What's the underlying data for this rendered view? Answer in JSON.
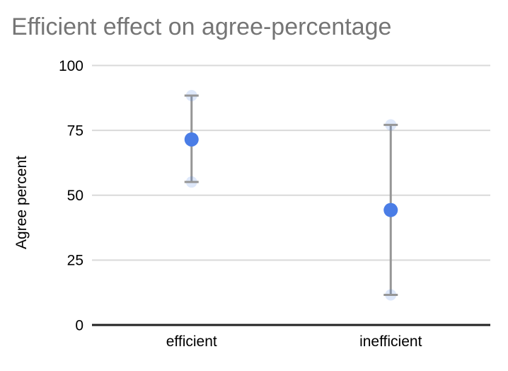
{
  "chart_data": {
    "type": "scatter",
    "title": "Efficient effect on agree-percentage",
    "xlabel": "",
    "ylabel": "Agree percent",
    "categories": [
      "efficient",
      "inefficient"
    ],
    "series": [
      {
        "values": [
          71.5,
          44.3
        ],
        "error_low": [
          55.1,
          11.6
        ],
        "error_high": [
          88.4,
          77.1
        ]
      }
    ],
    "ylim": [
      0,
      100
    ],
    "yticks": [
      0,
      25,
      50,
      75,
      100
    ],
    "grid": true,
    "legend_position": "none",
    "colors": {
      "point": "#4a7de6",
      "error_bar": "#969696",
      "error_cap_halo": "#4a7de6",
      "gridline": "#d9d9d9",
      "axis_line": "#212121",
      "title": "#757575",
      "tick_text": "#000000"
    }
  }
}
